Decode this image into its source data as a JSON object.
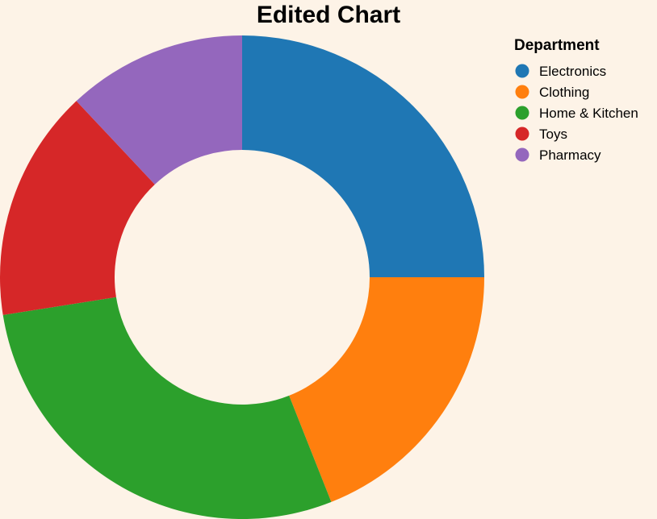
{
  "chart_data": {
    "type": "pie",
    "donut": true,
    "title": "Edited Chart",
    "legend_title": "Department",
    "legend_position": "top-right",
    "categories": [
      "Electronics",
      "Clothing",
      "Home & Kitchen",
      "Toys",
      "Pharmacy"
    ],
    "values": [
      25,
      19,
      28.5,
      15.5,
      12
    ],
    "colors": [
      "#1f77b4",
      "#ff7f0e",
      "#2ca02c",
      "#d62728",
      "#9467bd"
    ]
  }
}
